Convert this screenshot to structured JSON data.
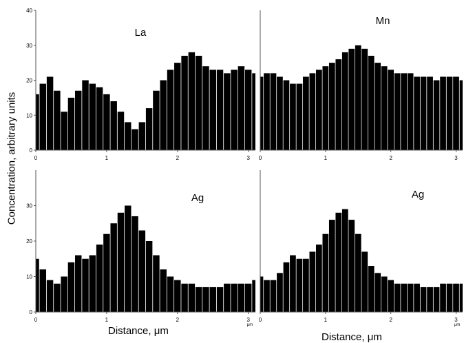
{
  "figure": {
    "ylabel": "Concentration, arbitrary units",
    "xlabel_left": "Distance, μm",
    "xlabel_right": "Distance, μm",
    "bar_color": "#000000",
    "axis_color": "#555555"
  },
  "chart_data": [
    {
      "type": "bar",
      "title": "La",
      "xlim": [
        0,
        3.1
      ],
      "ylim": [
        0,
        40
      ],
      "xticks": [
        "0",
        "1",
        "2",
        "3"
      ],
      "yticks": [
        "0",
        "10",
        "20",
        "30",
        "40"
      ],
      "x_unit_label": "",
      "x": [
        0.0,
        0.1,
        0.2,
        0.3,
        0.4,
        0.5,
        0.6,
        0.7,
        0.8,
        0.9,
        1.0,
        1.1,
        1.2,
        1.3,
        1.4,
        1.5,
        1.6,
        1.7,
        1.8,
        1.9,
        2.0,
        2.1,
        2.2,
        2.3,
        2.4,
        2.5,
        2.6,
        2.7,
        2.8,
        2.9,
        3.0,
        3.1
      ],
      "values": [
        16,
        19,
        21,
        17,
        11,
        15,
        17,
        20,
        19,
        18,
        16,
        14,
        11,
        8,
        6,
        8,
        12,
        17,
        20,
        23,
        25,
        27,
        28,
        27,
        24,
        23,
        23,
        22,
        23,
        24,
        23,
        22
      ]
    },
    {
      "type": "bar",
      "title": "Mn",
      "xlim": [
        0,
        3.1
      ],
      "ylim": [
        0,
        40
      ],
      "xticks": [
        "0",
        "1",
        "2",
        "3"
      ],
      "yticks": [],
      "x_unit_label": "",
      "x": [
        0.0,
        0.1,
        0.2,
        0.3,
        0.4,
        0.5,
        0.6,
        0.7,
        0.8,
        0.9,
        1.0,
        1.1,
        1.2,
        1.3,
        1.4,
        1.5,
        1.6,
        1.7,
        1.8,
        1.9,
        2.0,
        2.1,
        2.2,
        2.3,
        2.4,
        2.5,
        2.6,
        2.7,
        2.8,
        2.9,
        3.0,
        3.1
      ],
      "values": [
        21,
        22,
        22,
        21,
        20,
        19,
        19,
        21,
        22,
        23,
        24,
        25,
        26,
        28,
        29,
        30,
        29,
        27,
        25,
        24,
        23,
        22,
        22,
        22,
        21,
        21,
        21,
        20,
        21,
        21,
        21,
        20
      ]
    },
    {
      "type": "bar",
      "title": "Ag",
      "xlim": [
        0,
        3.1
      ],
      "ylim": [
        0,
        40
      ],
      "xticks": [
        "0",
        "1",
        "2",
        "3"
      ],
      "yticks": [
        "0",
        "10",
        "20",
        "30"
      ],
      "x_unit_label": "μm",
      "x": [
        0.0,
        0.1,
        0.2,
        0.3,
        0.4,
        0.5,
        0.6,
        0.7,
        0.8,
        0.9,
        1.0,
        1.1,
        1.2,
        1.3,
        1.4,
        1.5,
        1.6,
        1.7,
        1.8,
        1.9,
        2.0,
        2.1,
        2.2,
        2.3,
        2.4,
        2.5,
        2.6,
        2.7,
        2.8,
        2.9,
        3.0,
        3.1
      ],
      "values": [
        15,
        12,
        9,
        8,
        10,
        14,
        16,
        15,
        16,
        19,
        22,
        25,
        28,
        30,
        27,
        23,
        20,
        16,
        12,
        10,
        9,
        8,
        8,
        7,
        7,
        7,
        7,
        8,
        8,
        8,
        8,
        9
      ]
    },
    {
      "type": "bar",
      "title": "Ag",
      "xlim": [
        0,
        3.1
      ],
      "ylim": [
        0,
        40
      ],
      "xticks": [
        "0",
        "1",
        "2",
        "3"
      ],
      "yticks": [],
      "x_unit_label": "μm",
      "x": [
        0.0,
        0.1,
        0.2,
        0.3,
        0.4,
        0.5,
        0.6,
        0.7,
        0.8,
        0.9,
        1.0,
        1.1,
        1.2,
        1.3,
        1.4,
        1.5,
        1.6,
        1.7,
        1.8,
        1.9,
        2.0,
        2.1,
        2.2,
        2.3,
        2.4,
        2.5,
        2.6,
        2.7,
        2.8,
        2.9,
        3.0,
        3.1
      ],
      "values": [
        10,
        9,
        9,
        11,
        14,
        16,
        15,
        15,
        17,
        19,
        22,
        26,
        28,
        29,
        26,
        22,
        17,
        13,
        11,
        10,
        9,
        8,
        8,
        8,
        8,
        7,
        7,
        7,
        8,
        8,
        8,
        8
      ]
    }
  ]
}
